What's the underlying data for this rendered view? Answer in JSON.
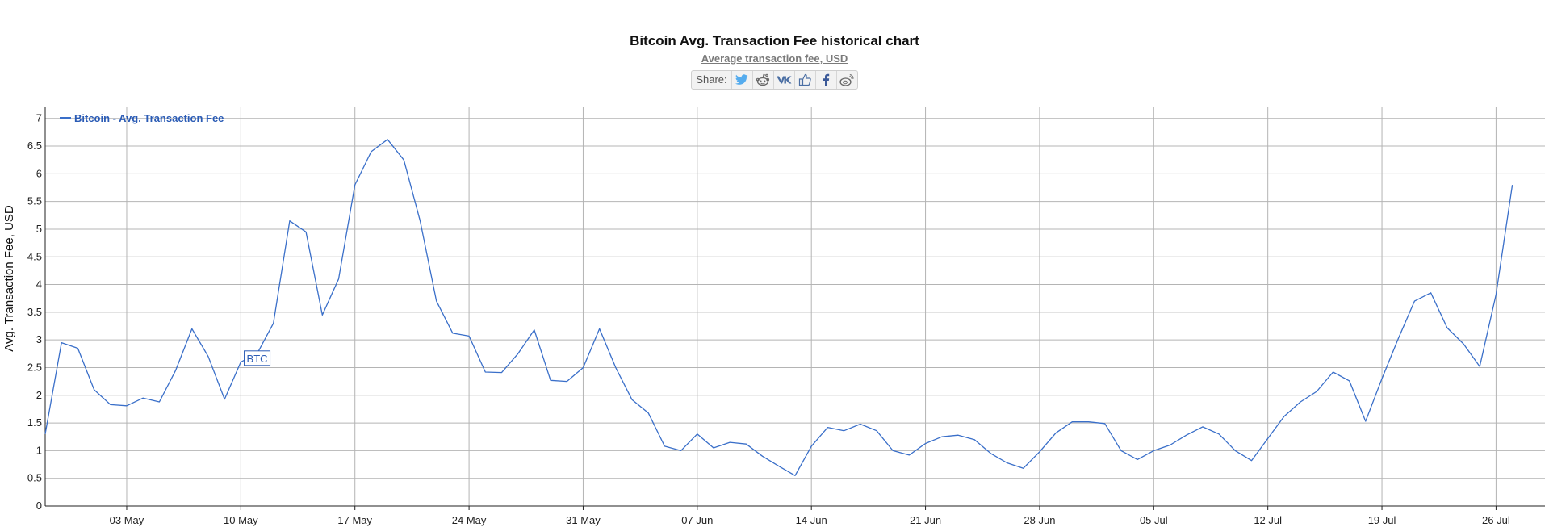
{
  "chart_data": {
    "type": "line",
    "title": "Bitcoin Avg. Transaction Fee historical chart",
    "subtitle": "Average transaction fee, USD",
    "ylabel": "Avg. Transaction Fee, USD",
    "xlabel": "",
    "x_start": "2021-04-28",
    "x_end": "2021-07-29",
    "ylim": [
      0,
      7.2
    ],
    "y_ticks": [
      "0",
      "0.5",
      "1",
      "1.5",
      "2",
      "2.5",
      "3",
      "3.5",
      "4",
      "4.5",
      "5",
      "5.5",
      "6",
      "6.5",
      "7"
    ],
    "x_ticks": [
      {
        "date": "2021-05-03",
        "label": "03 May"
      },
      {
        "date": "2021-05-10",
        "label": "10 May"
      },
      {
        "date": "2021-05-17",
        "label": "17 May"
      },
      {
        "date": "2021-05-24",
        "label": "24 May"
      },
      {
        "date": "2021-05-31",
        "label": "31 May"
      },
      {
        "date": "2021-06-07",
        "label": "07 Jun"
      },
      {
        "date": "2021-06-14",
        "label": "14 Jun"
      },
      {
        "date": "2021-06-21",
        "label": "21 Jun"
      },
      {
        "date": "2021-06-28",
        "label": "28 Jun"
      },
      {
        "date": "2021-07-05",
        "label": "05 Jul"
      },
      {
        "date": "2021-07-12",
        "label": "12 Jul"
      },
      {
        "date": "2021-07-19",
        "label": "19 Jul"
      },
      {
        "date": "2021-07-26",
        "label": "26 Jul"
      }
    ],
    "grid": true,
    "legend_position": "top-left",
    "series": [
      {
        "name": "Bitcoin - Avg. Transaction Fee",
        "color": "#3a6fc9",
        "points": [
          [
            "2021-04-28",
            1.3
          ],
          [
            "2021-04-29",
            2.95
          ],
          [
            "2021-04-30",
            2.85
          ],
          [
            "2021-05-01",
            2.1
          ],
          [
            "2021-05-02",
            1.83
          ],
          [
            "2021-05-03",
            1.81
          ],
          [
            "2021-05-04",
            1.95
          ],
          [
            "2021-05-05",
            1.88
          ],
          [
            "2021-05-06",
            2.45
          ],
          [
            "2021-05-07",
            3.2
          ],
          [
            "2021-05-08",
            2.7
          ],
          [
            "2021-05-09",
            1.93
          ],
          [
            "2021-05-10",
            2.6
          ],
          [
            "2021-05-11",
            2.75
          ],
          [
            "2021-05-12",
            3.3
          ],
          [
            "2021-05-13",
            5.15
          ],
          [
            "2021-05-14",
            4.95
          ],
          [
            "2021-05-15",
            3.45
          ],
          [
            "2021-05-16",
            4.1
          ],
          [
            "2021-05-17",
            5.8
          ],
          [
            "2021-05-18",
            6.4
          ],
          [
            "2021-05-19",
            6.62
          ],
          [
            "2021-05-20",
            6.25
          ],
          [
            "2021-05-21",
            5.15
          ],
          [
            "2021-05-22",
            3.7
          ],
          [
            "2021-05-23",
            3.12
          ],
          [
            "2021-05-24",
            3.07
          ],
          [
            "2021-05-25",
            2.42
          ],
          [
            "2021-05-26",
            2.41
          ],
          [
            "2021-05-27",
            2.75
          ],
          [
            "2021-05-28",
            3.18
          ],
          [
            "2021-05-29",
            2.27
          ],
          [
            "2021-05-30",
            2.25
          ],
          [
            "2021-05-31",
            2.5
          ],
          [
            "2021-06-01",
            3.2
          ],
          [
            "2021-06-02",
            2.5
          ],
          [
            "2021-06-03",
            1.92
          ],
          [
            "2021-06-04",
            1.68
          ],
          [
            "2021-06-05",
            1.08
          ],
          [
            "2021-06-06",
            1.0
          ],
          [
            "2021-06-07",
            1.3
          ],
          [
            "2021-06-08",
            1.05
          ],
          [
            "2021-06-09",
            1.15
          ],
          [
            "2021-06-10",
            1.12
          ],
          [
            "2021-06-11",
            0.9
          ],
          [
            "2021-06-12",
            0.72
          ],
          [
            "2021-06-13",
            0.55
          ],
          [
            "2021-06-14",
            1.08
          ],
          [
            "2021-06-15",
            1.42
          ],
          [
            "2021-06-16",
            1.36
          ],
          [
            "2021-06-17",
            1.48
          ],
          [
            "2021-06-18",
            1.36
          ],
          [
            "2021-06-19",
            1.0
          ],
          [
            "2021-06-20",
            0.92
          ],
          [
            "2021-06-21",
            1.13
          ],
          [
            "2021-06-22",
            1.25
          ],
          [
            "2021-06-23",
            1.28
          ],
          [
            "2021-06-24",
            1.2
          ],
          [
            "2021-06-25",
            0.95
          ],
          [
            "2021-06-26",
            0.78
          ],
          [
            "2021-06-27",
            0.68
          ],
          [
            "2021-06-28",
            0.98
          ],
          [
            "2021-06-29",
            1.32
          ],
          [
            "2021-06-30",
            1.52
          ],
          [
            "2021-07-01",
            1.52
          ],
          [
            "2021-07-02",
            1.49
          ],
          [
            "2021-07-03",
            1.0
          ],
          [
            "2021-07-04",
            0.84
          ],
          [
            "2021-07-05",
            1.0
          ],
          [
            "2021-07-06",
            1.1
          ],
          [
            "2021-07-07",
            1.28
          ],
          [
            "2021-07-08",
            1.43
          ],
          [
            "2021-07-09",
            1.3
          ],
          [
            "2021-07-10",
            1.0
          ],
          [
            "2021-07-11",
            0.82
          ],
          [
            "2021-07-12",
            1.22
          ],
          [
            "2021-07-13",
            1.62
          ],
          [
            "2021-07-14",
            1.88
          ],
          [
            "2021-07-15",
            2.07
          ],
          [
            "2021-07-16",
            2.42
          ],
          [
            "2021-07-17",
            2.26
          ],
          [
            "2021-07-18",
            1.53
          ],
          [
            "2021-07-19",
            2.3
          ],
          [
            "2021-07-20",
            3.02
          ],
          [
            "2021-07-21",
            3.7
          ],
          [
            "2021-07-22",
            3.85
          ],
          [
            "2021-07-23",
            3.22
          ],
          [
            "2021-07-24",
            2.93
          ],
          [
            "2021-07-25",
            2.52
          ],
          [
            "2021-07-26",
            3.82
          ],
          [
            "2021-07-27",
            5.8
          ]
        ]
      }
    ],
    "annotations": [
      {
        "text": "BTC",
        "date": "2021-05-11",
        "value": 2.67
      }
    ]
  },
  "share": {
    "label": "Share:",
    "buttons": [
      {
        "icon": "twitter-icon",
        "color": "#55acee"
      },
      {
        "icon": "reddit-icon",
        "color": "#666666"
      },
      {
        "icon": "vk-icon",
        "color": "#4a6ea3"
      },
      {
        "icon": "like-icon",
        "color": "#4a6ea3"
      },
      {
        "icon": "facebook-icon",
        "color": "#3b5998"
      },
      {
        "icon": "weibo-icon",
        "color": "#666666"
      }
    ]
  },
  "colors": {
    "line": "#3a6fc9",
    "grid": "#b4b4b4",
    "axis": "#222222",
    "legend_text": "#2a5bb5"
  }
}
